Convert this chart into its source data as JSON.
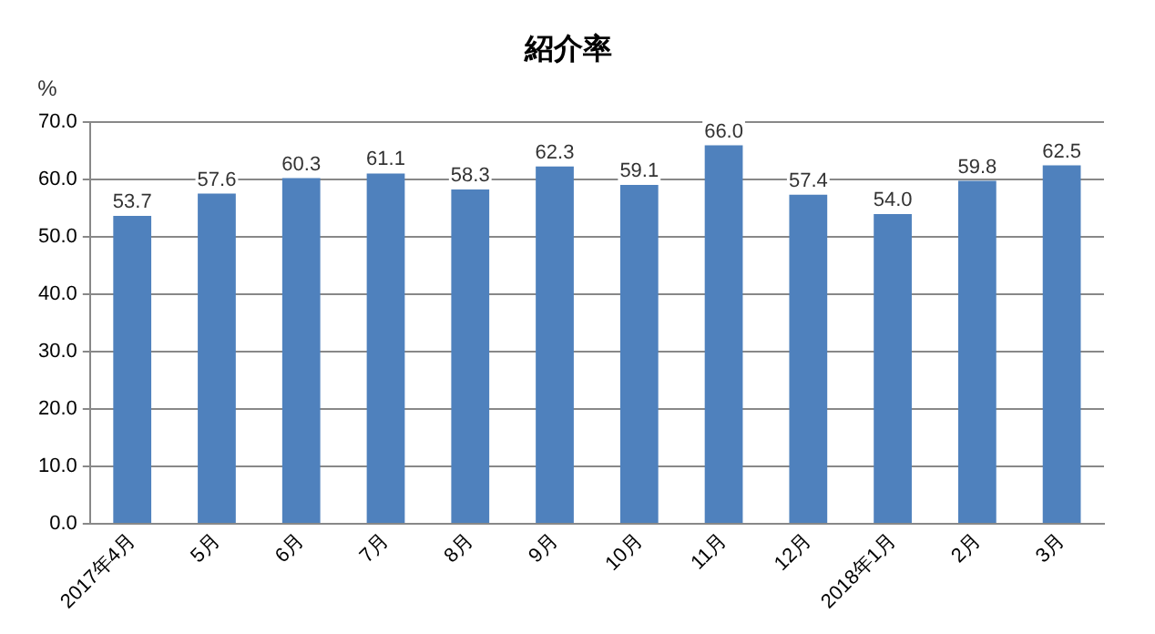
{
  "chart_data": {
    "type": "bar",
    "title": "紹介率",
    "ylabel": "%",
    "categories": [
      "2017年4月",
      "5月",
      "6月",
      "7月",
      "8月",
      "9月",
      "10月",
      "11月",
      "12月",
      "2018年1月",
      "2月",
      "3月"
    ],
    "values": [
      53.7,
      57.6,
      60.3,
      61.1,
      58.3,
      62.3,
      59.1,
      66.0,
      57.4,
      54.0,
      59.8,
      62.5
    ],
    "value_labels": [
      "53.7",
      "57.6",
      "60.3",
      "61.1",
      "58.3",
      "62.3",
      "59.1",
      "66.0",
      "57.4",
      "54.0",
      "59.8",
      "62.5"
    ],
    "color": "#4f81bd",
    "ylim": [
      0,
      70
    ],
    "yticks": [
      {
        "value": 0,
        "label": "0.0"
      },
      {
        "value": 10,
        "label": "10.0"
      },
      {
        "value": 20,
        "label": "20.0"
      },
      {
        "value": 30,
        "label": "30.0"
      },
      {
        "value": 40,
        "label": "40.0"
      },
      {
        "value": 50,
        "label": "50.0"
      },
      {
        "value": 60,
        "label": "60.0"
      },
      {
        "value": 70,
        "label": "70.0"
      }
    ],
    "grid": "y",
    "legend": false
  }
}
